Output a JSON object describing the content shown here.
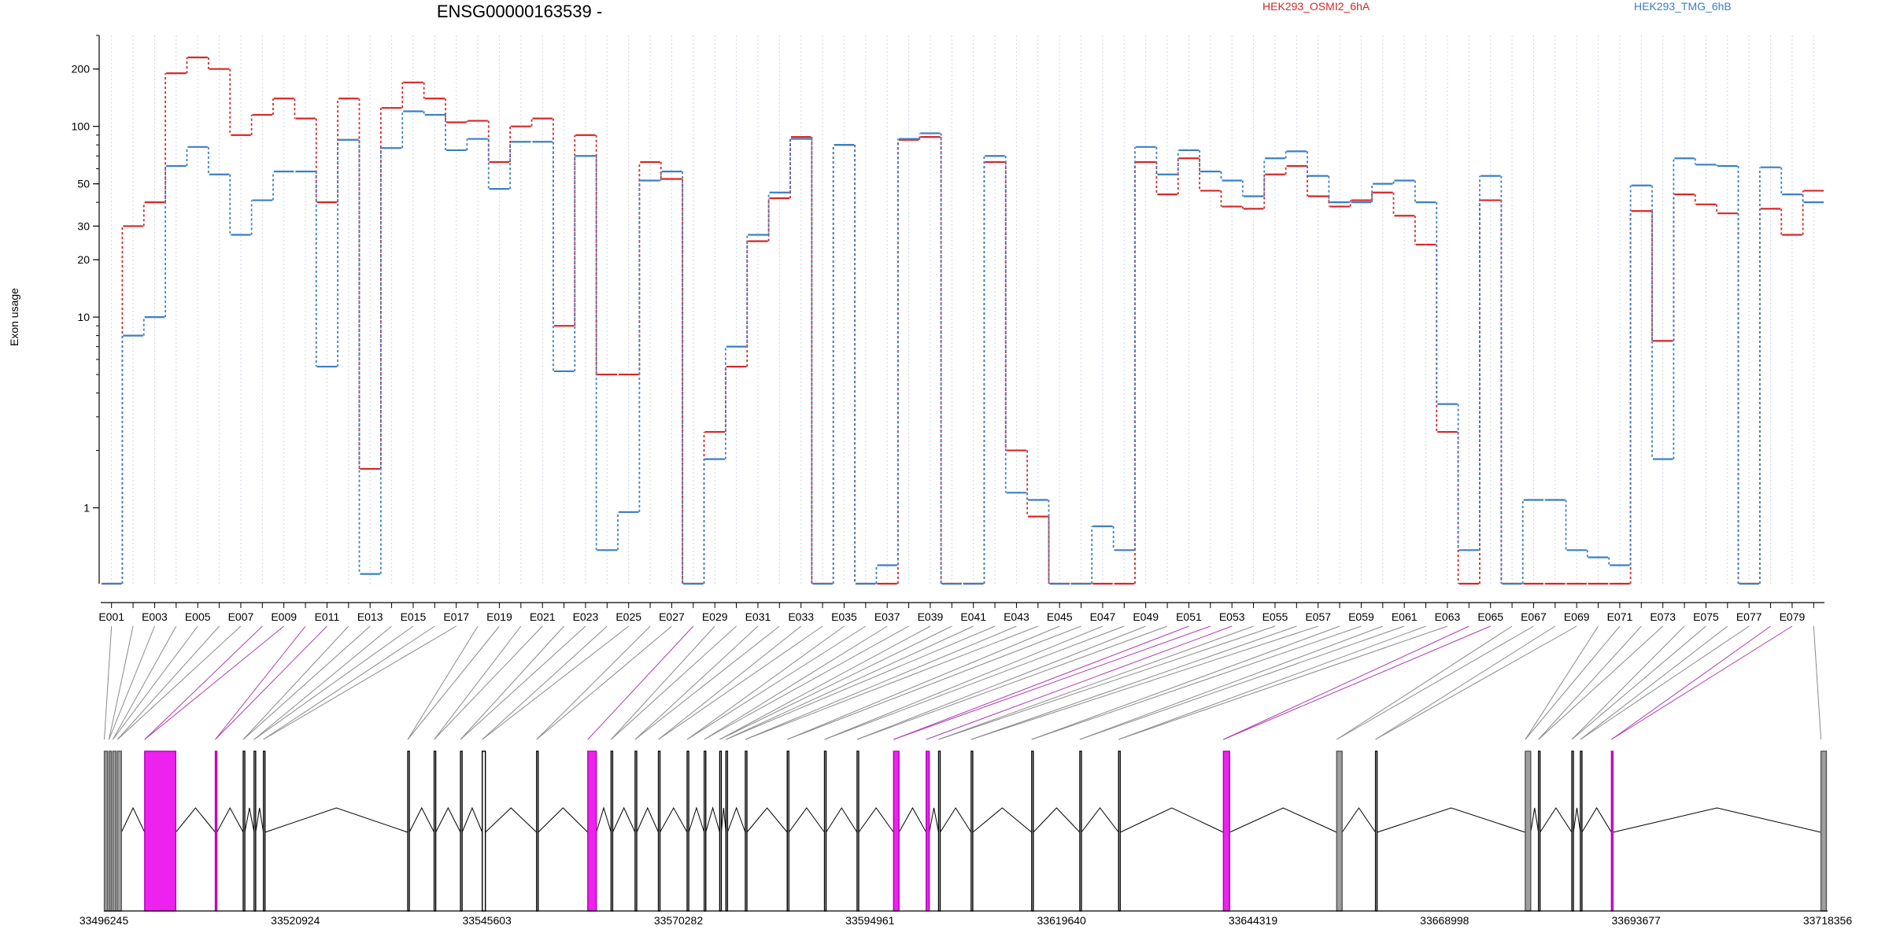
{
  "chart_data": {
    "type": "line",
    "title": "ENSG00000163539 -",
    "ylabel": "Exon usage",
    "xlabel": "",
    "y_scale": "log",
    "ylim": [
      0.4,
      300
    ],
    "y_ticks": [
      1,
      10,
      20,
      30,
      50,
      100,
      200
    ],
    "grid": "vertical dotted",
    "legend_placement": "top-right",
    "exons": [
      "E001",
      "E002",
      "E003",
      "E004",
      "E005",
      "E006",
      "E007",
      "E008",
      "E009",
      "E010",
      "E011",
      "E012",
      "E013",
      "E014",
      "E015",
      "E016",
      "E017",
      "E018",
      "E019",
      "E020",
      "E021",
      "E022",
      "E023",
      "E024",
      "E025",
      "E026",
      "E027",
      "E028",
      "E029",
      "E030",
      "E031",
      "E032",
      "E033",
      "E034",
      "E035",
      "E036",
      "E037",
      "E038",
      "E039",
      "E040",
      "E041",
      "E042",
      "E043",
      "E044",
      "E045",
      "E046",
      "E047",
      "E048",
      "E049",
      "E050",
      "E051",
      "E052",
      "E053",
      "E054",
      "E055",
      "E056",
      "E057",
      "E058",
      "E059",
      "E060",
      "E061",
      "E062",
      "E063",
      "E064",
      "E065",
      "E066",
      "E067",
      "E068",
      "E069",
      "E070",
      "E071",
      "E072",
      "E073",
      "E074",
      "E075",
      "E076",
      "E077",
      "E078",
      "E079",
      "E080"
    ],
    "x_tick_labels": [
      "E001",
      "E003",
      "E005",
      "E007",
      "E009",
      "E011",
      "E013",
      "E015",
      "E017",
      "E019",
      "E021",
      "E023",
      "E025",
      "E027",
      "E029",
      "E031",
      "E033",
      "E035",
      "E037",
      "E039",
      "E041",
      "E043",
      "E045",
      "E047",
      "E049",
      "E051",
      "E053",
      "E055",
      "E057",
      "E059",
      "E061",
      "E063",
      "E065",
      "E067",
      "E069",
      "E071",
      "E073",
      "E075",
      "E077",
      "E079"
    ],
    "series": [
      {
        "name": "HEK293_OSMI2_6hA",
        "color": "#d62728",
        "values": [
          0.4,
          30,
          40,
          190,
          230,
          200,
          90,
          115,
          140,
          110,
          40,
          140,
          1.6,
          125,
          170,
          140,
          105,
          107,
          65,
          100,
          110,
          9,
          90,
          5,
          5,
          65,
          53,
          0.4,
          2.5,
          5.5,
          25,
          42,
          88,
          0.4,
          80,
          0.4,
          0.4,
          85,
          88,
          0.4,
          0.4,
          65,
          2,
          0.9,
          0.4,
          0.4,
          0.4,
          0.4,
          65,
          44,
          68,
          46,
          38,
          37,
          56,
          62,
          43,
          38,
          41,
          45,
          34,
          24,
          2.5,
          0.4,
          41,
          0.4,
          0.4,
          0.4,
          0.4,
          0.4,
          0.4,
          36,
          7.5,
          44,
          39,
          35,
          0.4,
          37,
          27,
          46
        ]
      },
      {
        "name": "HEK293_TMG_6hB",
        "color": "#3b7fc4",
        "values": [
          0.4,
          8,
          10,
          62,
          78,
          56,
          27,
          41,
          58,
          58,
          5.5,
          85,
          0.45,
          77,
          120,
          115,
          75,
          86,
          47,
          83,
          83,
          5.2,
          70,
          0.6,
          0.95,
          52,
          58,
          0.4,
          1.8,
          7,
          27,
          45,
          86,
          0.4,
          80,
          0.4,
          0.5,
          86,
          92,
          0.4,
          0.4,
          70,
          1.2,
          1.1,
          0.4,
          0.4,
          0.8,
          0.6,
          78,
          56,
          75,
          58,
          52,
          43,
          68,
          74,
          55,
          40,
          40,
          50,
          52,
          40,
          3.5,
          0.6,
          55,
          0.4,
          1.1,
          1.1,
          0.6,
          0.55,
          0.5,
          49,
          1.8,
          68,
          63,
          62,
          0.4,
          61,
          44,
          40
        ]
      }
    ],
    "genomic_axis": {
      "tick_labels": [
        "33496245",
        "33520924",
        "33545603",
        "33570282",
        "33594961",
        "33619640",
        "33644319",
        "33668998",
        "33693677",
        "33718356"
      ],
      "range": [
        33496245,
        33718356
      ]
    },
    "transcript_exons": [
      {
        "start": 33496300,
        "end": 33496700,
        "color": "gray"
      },
      {
        "start": 33496900,
        "end": 33497200,
        "color": "gray"
      },
      {
        "start": 33497400,
        "end": 33497800,
        "color": "gray"
      },
      {
        "start": 33498000,
        "end": 33498500,
        "color": "gray"
      },
      {
        "start": 33501500,
        "end": 33505500,
        "color": "magenta"
      },
      {
        "start": 33510600,
        "end": 33510800,
        "color": "magenta"
      },
      {
        "start": 33514200,
        "end": 33514400,
        "color": "black"
      },
      {
        "start": 33515600,
        "end": 33515800,
        "color": "black"
      },
      {
        "start": 33516800,
        "end": 33517000,
        "color": "black"
      },
      {
        "start": 33535400,
        "end": 33535600,
        "color": "black"
      },
      {
        "start": 33538800,
        "end": 33539000,
        "color": "black"
      },
      {
        "start": 33542200,
        "end": 33542400,
        "color": "black"
      },
      {
        "start": 33545000,
        "end": 33545400,
        "color": "black"
      },
      {
        "start": 33552000,
        "end": 33552200,
        "color": "black"
      },
      {
        "start": 33558600,
        "end": 33559700,
        "color": "magenta"
      },
      {
        "start": 33561600,
        "end": 33561800,
        "color": "black"
      },
      {
        "start": 33564700,
        "end": 33564900,
        "color": "black"
      },
      {
        "start": 33567700,
        "end": 33567900,
        "color": "black"
      },
      {
        "start": 33571400,
        "end": 33571600,
        "color": "black"
      },
      {
        "start": 33573600,
        "end": 33573800,
        "color": "black"
      },
      {
        "start": 33575600,
        "end": 33575800,
        "color": "black"
      },
      {
        "start": 33576400,
        "end": 33576600,
        "color": "black"
      },
      {
        "start": 33578900,
        "end": 33579100,
        "color": "black"
      },
      {
        "start": 33584300,
        "end": 33584500,
        "color": "black"
      },
      {
        "start": 33589100,
        "end": 33589300,
        "color": "black"
      },
      {
        "start": 33593300,
        "end": 33593500,
        "color": "black"
      },
      {
        "start": 33598000,
        "end": 33598700,
        "color": "magenta"
      },
      {
        "start": 33602200,
        "end": 33602600,
        "color": "magenta"
      },
      {
        "start": 33603800,
        "end": 33604000,
        "color": "black"
      },
      {
        "start": 33608000,
        "end": 33608200,
        "color": "black"
      },
      {
        "start": 33615800,
        "end": 33616000,
        "color": "black"
      },
      {
        "start": 33622000,
        "end": 33622200,
        "color": "black"
      },
      {
        "start": 33627000,
        "end": 33627200,
        "color": "black"
      },
      {
        "start": 33640500,
        "end": 33641300,
        "color": "magenta"
      },
      {
        "start": 33655100,
        "end": 33655800,
        "color": "gray"
      },
      {
        "start": 33660100,
        "end": 33660300,
        "color": "black"
      },
      {
        "start": 33679400,
        "end": 33680100,
        "color": "gray"
      },
      {
        "start": 33681100,
        "end": 33681300,
        "color": "black"
      },
      {
        "start": 33685400,
        "end": 33685600,
        "color": "black"
      },
      {
        "start": 33686500,
        "end": 33686700,
        "color": "black"
      },
      {
        "start": 33690500,
        "end": 33690700,
        "color": "magenta"
      },
      {
        "start": 33717500,
        "end": 33718200,
        "color": "gray"
      }
    ]
  }
}
